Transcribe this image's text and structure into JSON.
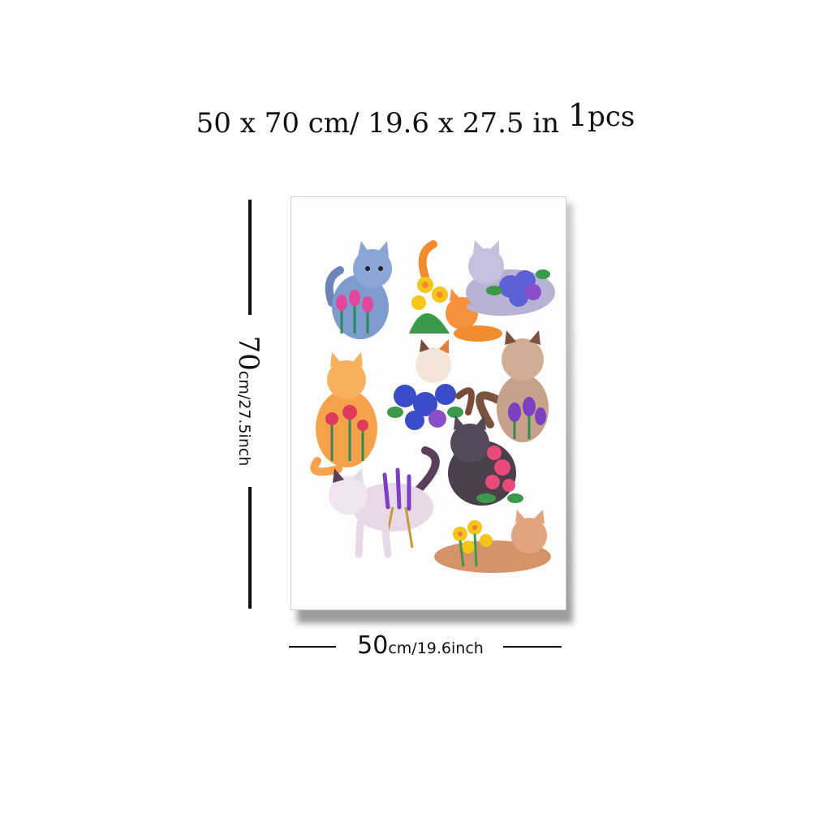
{
  "header": {
    "size_text": "50 x 70 cm/ 19.6 x 27.5 in",
    "qty_number": "1",
    "qty_unit": "pcs"
  },
  "dimensions": {
    "height_value": "70",
    "height_unit": "cm/27.5inch",
    "width_value": "50",
    "width_unit": "cm/19.6inch"
  },
  "colors": {
    "background": "#ffffff",
    "poster": "#fdfdfd",
    "line": "#111111"
  }
}
